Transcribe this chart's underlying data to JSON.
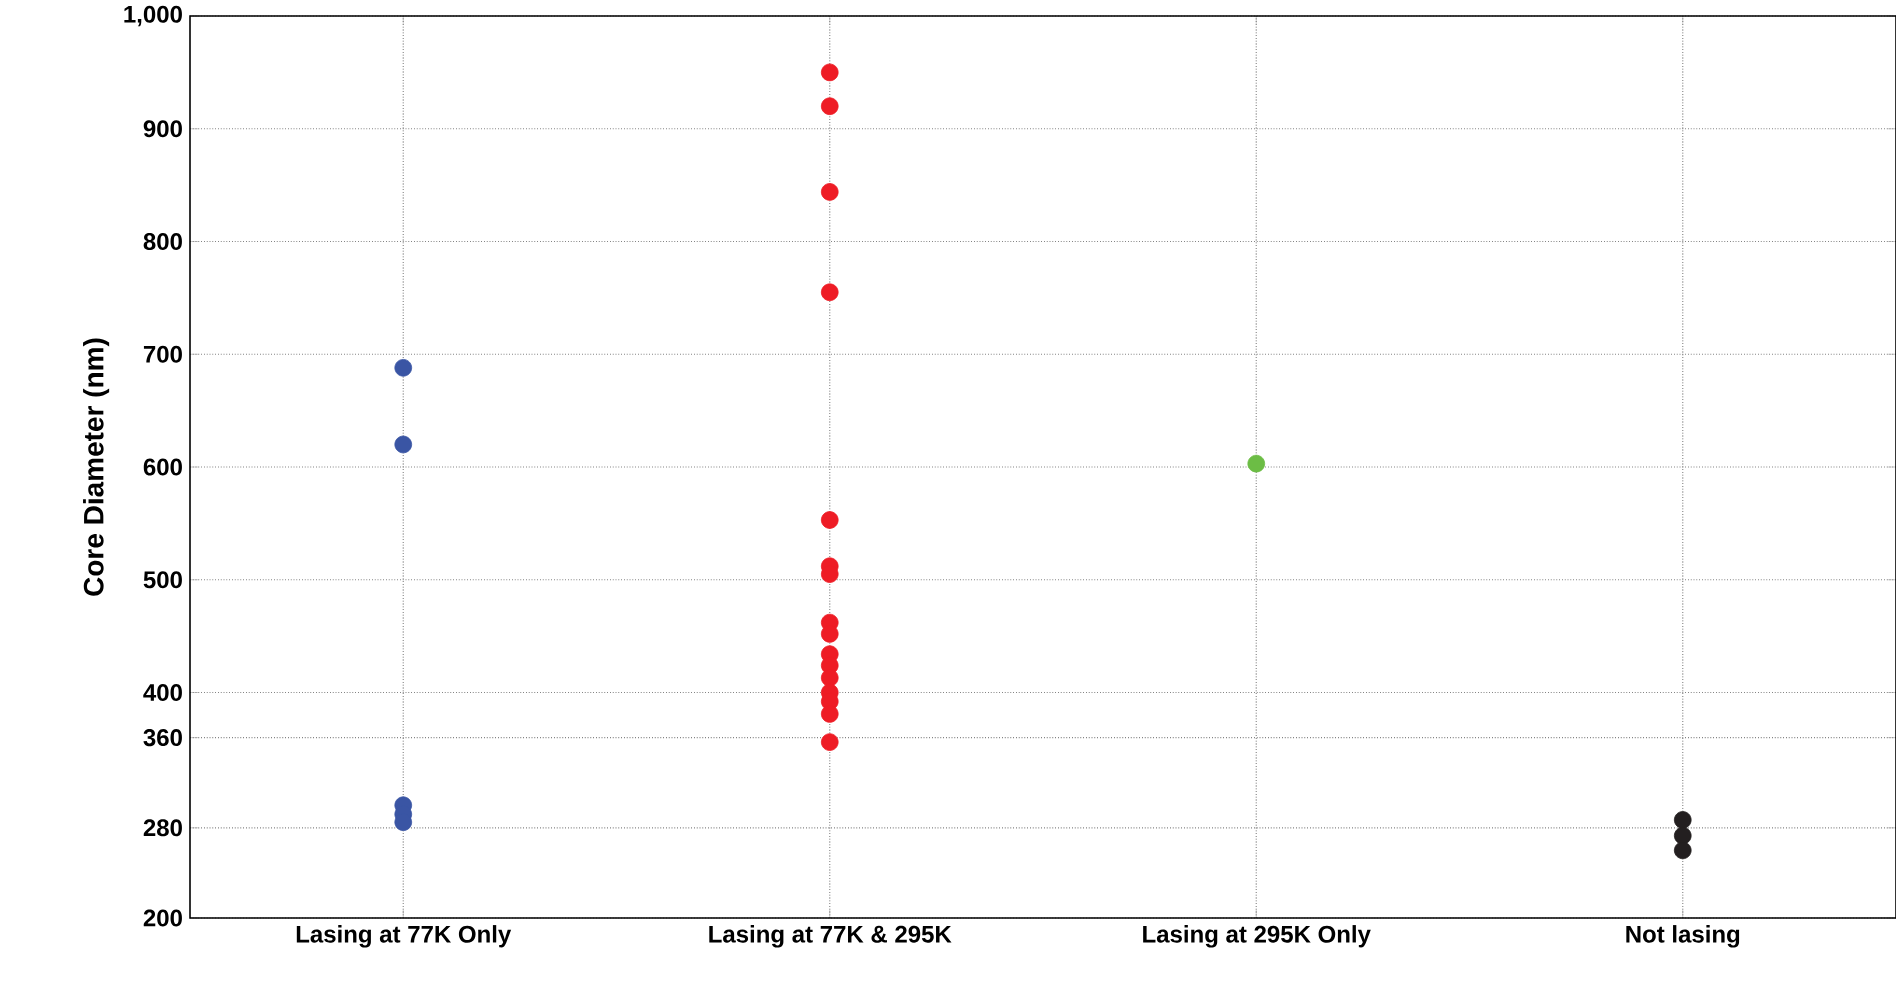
{
  "chart_data": {
    "type": "scatter",
    "ylabel": "Core Diameter (nm)",
    "categories": [
      "Lasing at 77K Only",
      "Lasing at 77K & 295K",
      "Lasing at 295K Only",
      "Not lasing"
    ],
    "series": [
      {
        "color": "#3a55a4",
        "x": [
          "Lasing at 77K Only",
          "Lasing at 77K Only",
          "Lasing at 77K Only",
          "Lasing at 77K Only",
          "Lasing at 77K Only"
        ],
        "values": [
          688,
          620,
          300,
          292,
          285
        ]
      },
      {
        "color": "#ee1c25",
        "x": [
          "Lasing at 77K & 295K",
          "Lasing at 77K & 295K",
          "Lasing at 77K & 295K",
          "Lasing at 77K & 295K",
          "Lasing at 77K & 295K",
          "Lasing at 77K & 295K",
          "Lasing at 77K & 295K",
          "Lasing at 77K & 295K",
          "Lasing at 77K & 295K",
          "Lasing at 77K & 295K",
          "Lasing at 77K & 295K",
          "Lasing at 77K & 295K",
          "Lasing at 77K & 295K",
          "Lasing at 77K & 295K",
          "Lasing at 77K & 295K",
          "Lasing at 77K & 295K"
        ],
        "values": [
          950,
          920,
          844,
          755,
          553,
          512,
          505,
          462,
          452,
          434,
          424,
          413,
          400,
          392,
          381,
          356
        ]
      },
      {
        "color": "#6cbd45",
        "x": [
          "Lasing at 295K Only"
        ],
        "values": [
          603
        ]
      },
      {
        "color": "#231f20",
        "x": [
          "Not lasing",
          "Not lasing",
          "Not lasing"
        ],
        "values": [
          287,
          273,
          260
        ]
      }
    ],
    "ylim": [
      200,
      1000
    ],
    "yticks": [
      200,
      280,
      360,
      400,
      500,
      600,
      700,
      800,
      900,
      {
        "value": 1000,
        "label": "1,000"
      }
    ],
    "grid": true,
    "marker": "circle"
  }
}
